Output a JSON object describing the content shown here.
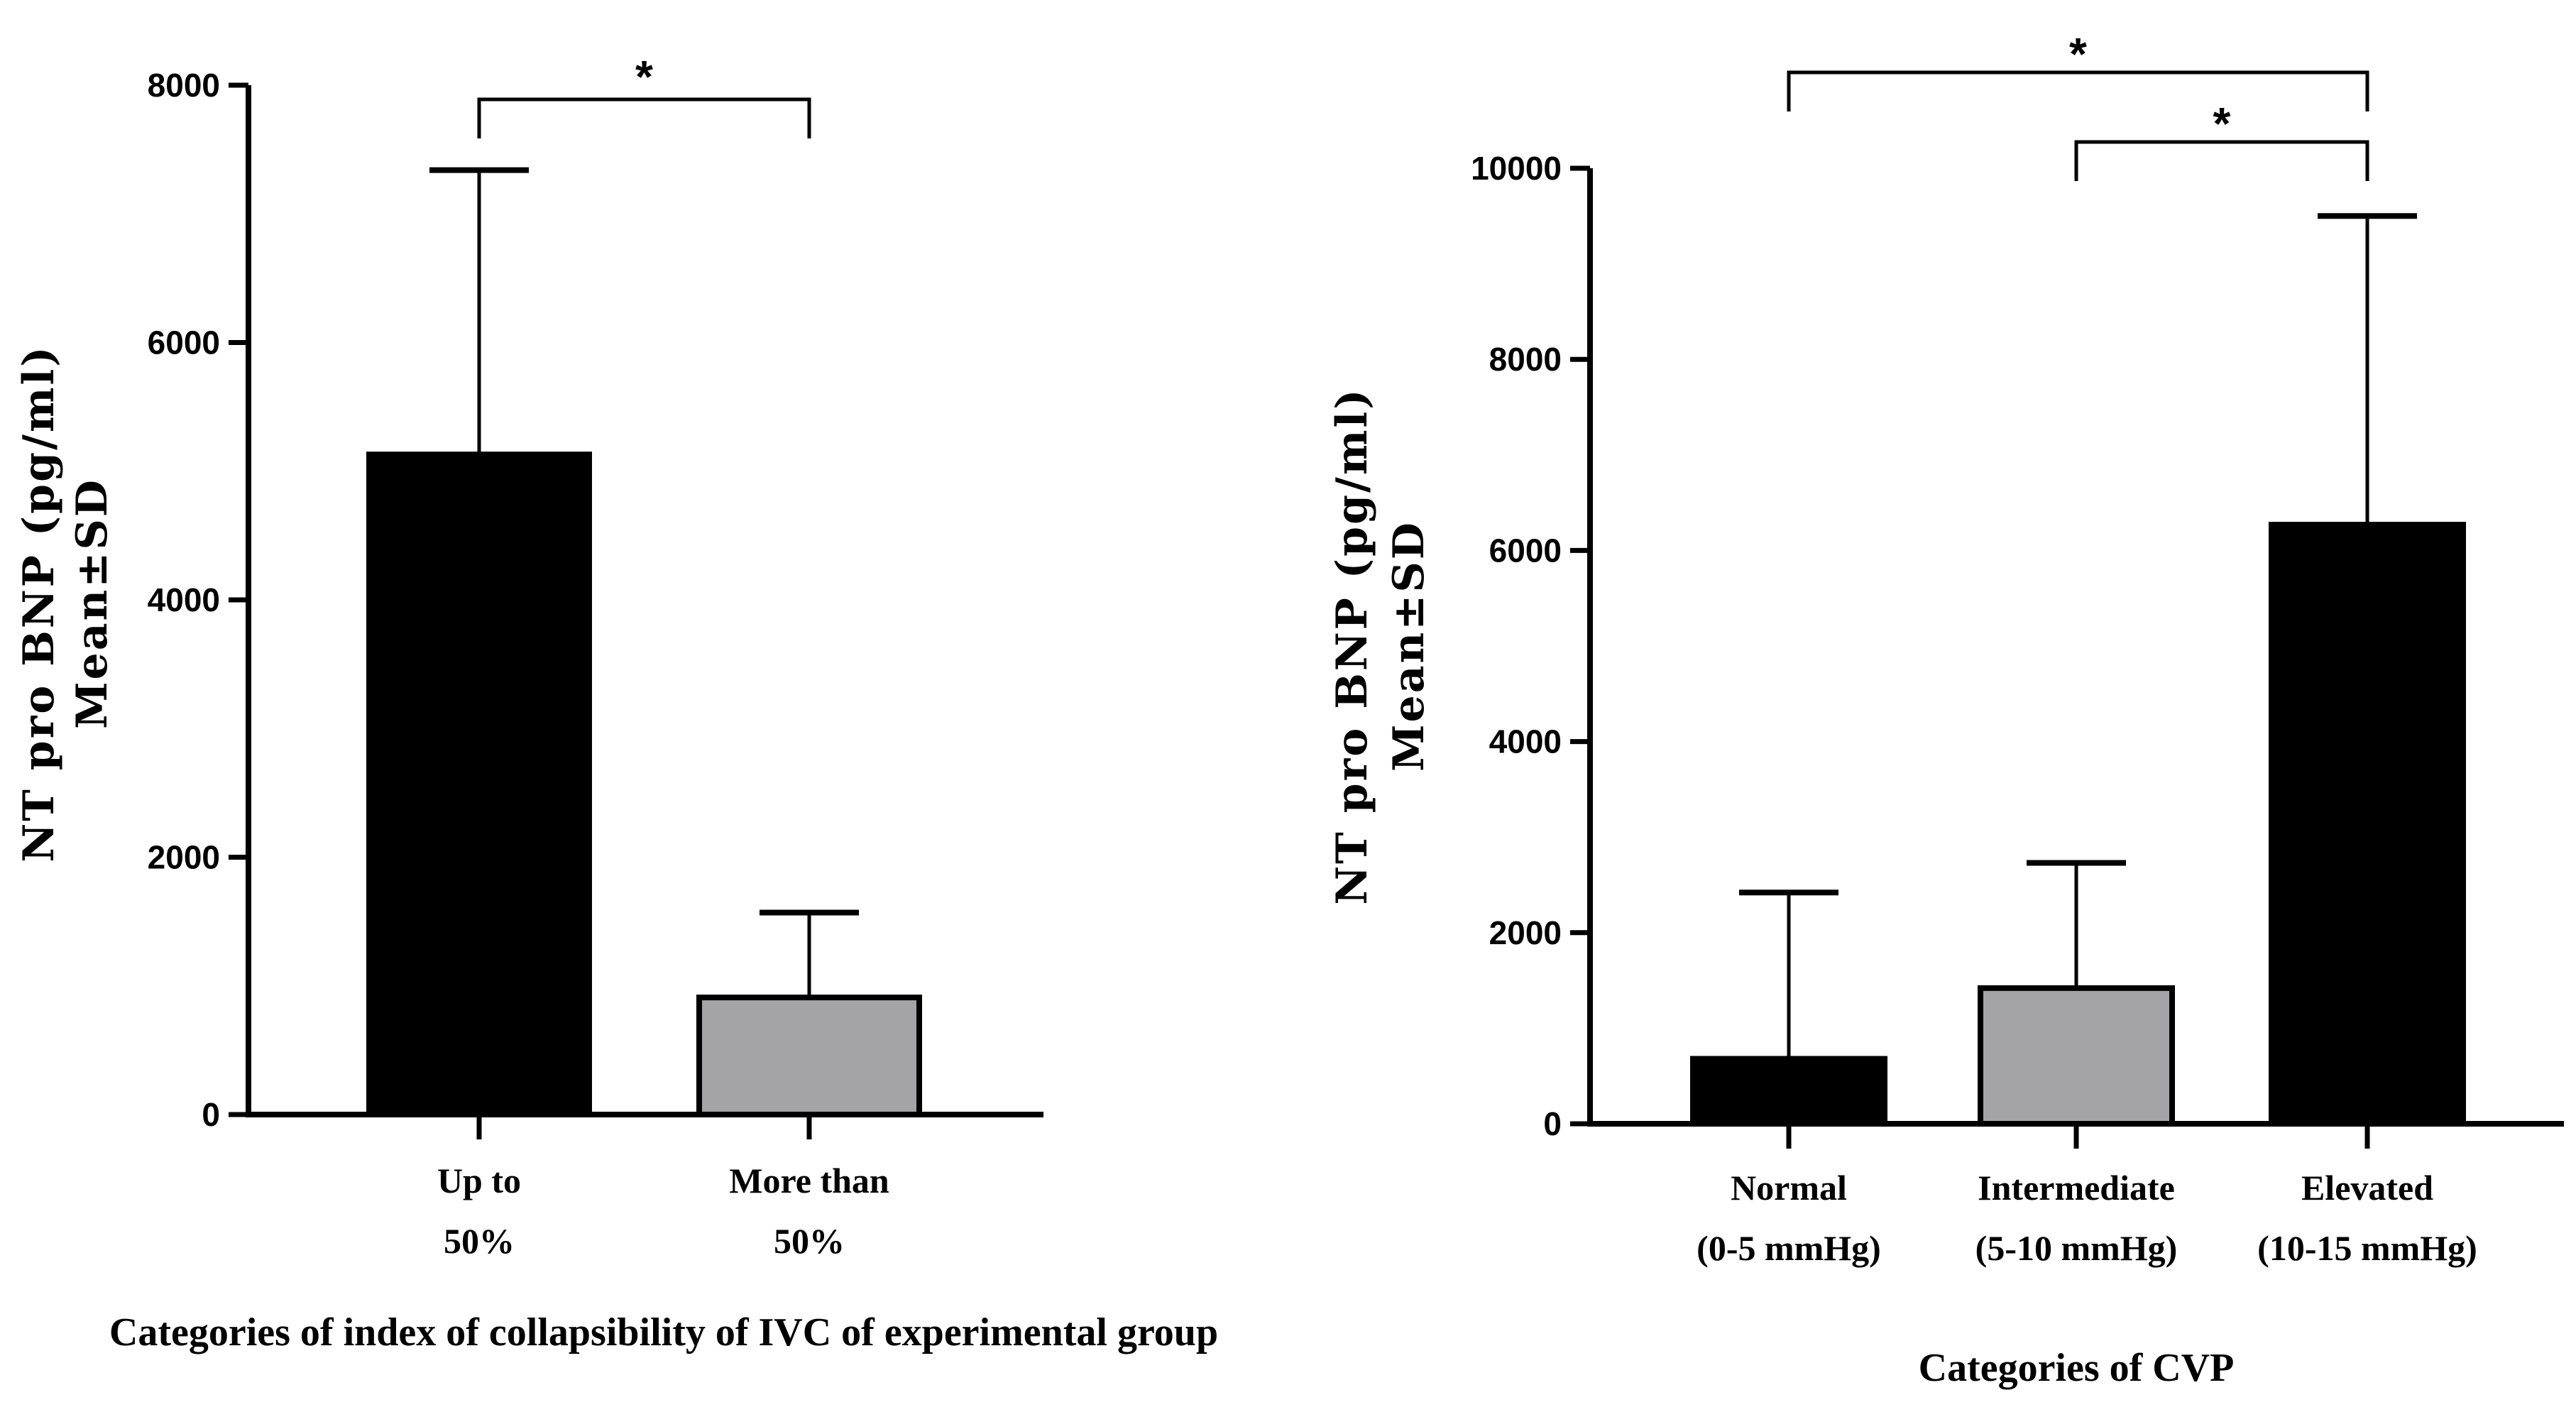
{
  "chart_data": [
    {
      "type": "bar",
      "title": "",
      "ylabel_lines": [
        "NT pro BNP (pg/ml)",
        "Mean±SD"
      ],
      "xlabel": "Categories of index of collapsibility of IVC of experimental group",
      "categories": [
        {
          "lines": [
            "Up to",
            "50%"
          ]
        },
        {
          "lines": [
            "More than",
            "50%"
          ]
        }
      ],
      "values": [
        5130,
        910
      ],
      "sd": [
        2210,
        660
      ],
      "fill_colors": [
        "#000000",
        "#a3a3a8"
      ],
      "ylim": [
        0,
        8000
      ],
      "yticks": [
        "0",
        "2000",
        "4000",
        "6000",
        "8000"
      ],
      "significance": [
        {
          "from": 0,
          "to": 1,
          "label": "*"
        }
      ]
    },
    {
      "type": "bar",
      "title": "",
      "ylabel_lines": [
        "NT pro BNP (pg/ml)",
        "Mean±SD"
      ],
      "xlabel": "Categories of CVP",
      "categories": [
        {
          "lines": [
            "Normal",
            "(0-5 mmHg)"
          ]
        },
        {
          "lines": [
            "Intermediate",
            "(5-10 mmHg)"
          ]
        },
        {
          "lines": [
            "Elevated",
            "(10-15 mmHg)"
          ]
        }
      ],
      "values": [
        680,
        1420,
        6270
      ],
      "sd": [
        1740,
        1310,
        3230
      ],
      "fill_colors": [
        "#000000",
        "#a3a3a8",
        "#000000"
      ],
      "ylim": [
        0,
        10000
      ],
      "yticks": [
        "0",
        "2000",
        "4000",
        "6000",
        "8000",
        "10000"
      ],
      "significance": [
        {
          "from": 0,
          "to": 2,
          "label": "*"
        },
        {
          "from": 1,
          "to": 2,
          "label": "*"
        }
      ]
    }
  ]
}
